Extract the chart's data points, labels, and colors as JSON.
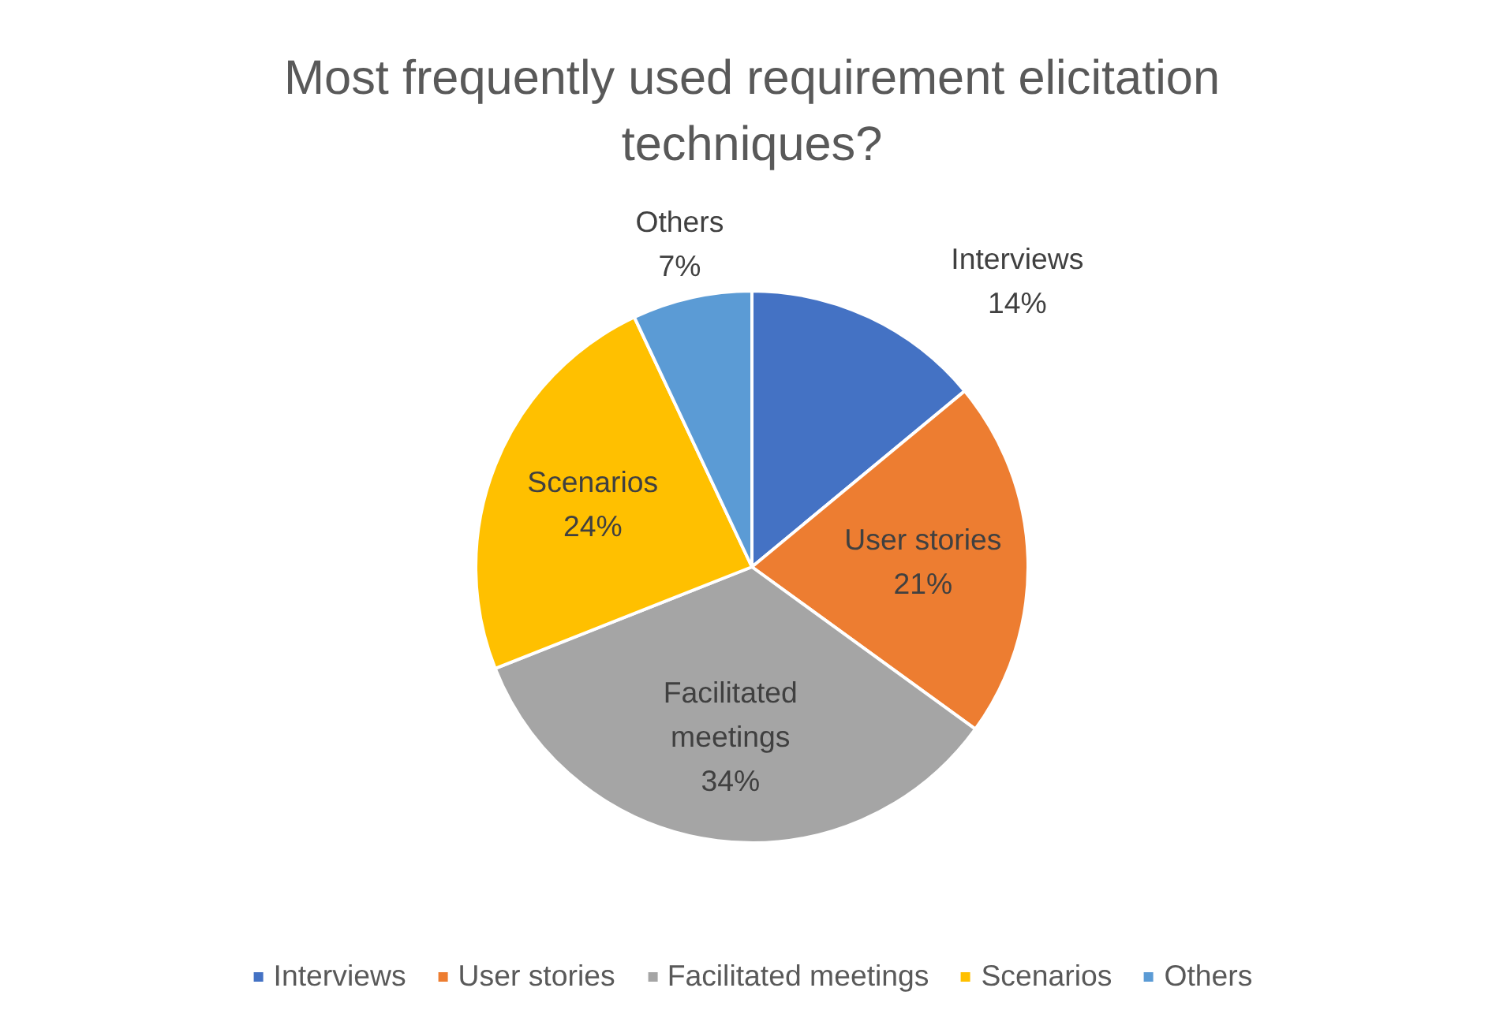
{
  "chart_data": {
    "type": "pie",
    "title": "Most frequently used requirement elicitation techniques?",
    "categories": [
      "Interviews",
      "User stories",
      "Facilitated meetings",
      "Scenarios",
      "Others"
    ],
    "values": [
      14,
      21,
      34,
      24,
      7
    ],
    "value_labels": [
      "14%",
      "21%",
      "34%",
      "24%",
      "7%"
    ],
    "colors": [
      "#4472c4",
      "#ed7d31",
      "#a5a5a5",
      "#ffc000",
      "#5b9bd5"
    ],
    "legend": "bottom"
  }
}
